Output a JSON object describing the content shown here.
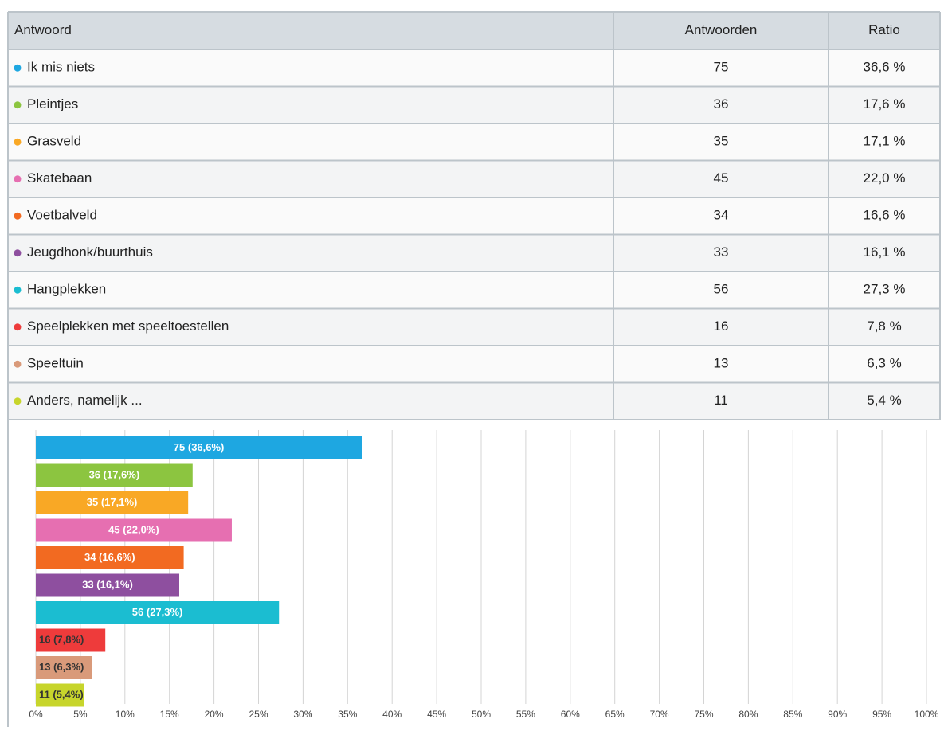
{
  "table": {
    "header": [
      "Antwoord",
      "Antwoorden",
      "Ratio"
    ],
    "rows": [
      [
        "Ik mis niets",
        75,
        "36,6 %"
      ],
      [
        "Pleintjes",
        36,
        "17,6 %"
      ],
      [
        "Grasveld",
        35,
        "17,1 %"
      ],
      [
        "Skatebaan",
        45,
        "22,0 %"
      ],
      [
        "Voetbalveld",
        34,
        "16,6 %"
      ],
      [
        "Jeugdhonk/buurthuis",
        33,
        "16,1 %"
      ],
      [
        "Hangplekken",
        56,
        "27,3 %"
      ],
      [
        "Speelplekken met speeltoestellen",
        16,
        "7,8 %"
      ],
      [
        "Speeltuin",
        13,
        "6,3 %"
      ],
      [
        "Anders, namelijk ...",
        11,
        "5,4 %"
      ]
    ]
  },
  "chart_data": {
    "type": "bar",
    "orientation": "horizontal",
    "values": [
      36.6,
      17.6,
      17.1,
      22.0,
      16.6,
      16.1,
      27.3,
      7.8,
      6.3,
      5.4
    ],
    "value_labels": [
      "75 (36,6%)",
      "36 (17,6%)",
      "35 (17,1%)",
      "45 (22,0%)",
      "34 (16,6%)",
      "33 (16,1%)",
      "56 (27,3%)",
      "16 (7,8%)",
      "13 (6,3%)",
      "11 (5,4%)"
    ],
    "colors": [
      "#1ea7e1",
      "#8cc540",
      "#f9a825",
      "#e66fb1",
      "#f26a21",
      "#8e4f9f",
      "#1bbdd1",
      "#ee3b3b",
      "#d99a7a",
      "#c7d52c"
    ],
    "xlim": [
      0,
      100
    ],
    "xticks": [
      {
        "value": 0,
        "label": "0%"
      },
      {
        "value": 5,
        "label": "5%"
      },
      {
        "value": 10,
        "label": "10%"
      },
      {
        "value": 15,
        "label": "15%"
      },
      {
        "value": 20,
        "label": "20%"
      },
      {
        "value": 25,
        "label": "25%"
      },
      {
        "value": 30,
        "label": "30%"
      },
      {
        "value": 35,
        "label": "35%"
      },
      {
        "value": 40,
        "label": "40%"
      },
      {
        "value": 45,
        "label": "45%"
      },
      {
        "value": 50,
        "label": "50%"
      },
      {
        "value": 55,
        "label": "55%"
      },
      {
        "value": 60,
        "label": "60%"
      },
      {
        "value": 65,
        "label": "65%"
      },
      {
        "value": 70,
        "label": "70%"
      },
      {
        "value": 75,
        "label": "75%"
      },
      {
        "value": 80,
        "label": "80%"
      },
      {
        "value": 85,
        "label": "85%"
      },
      {
        "value": 90,
        "label": "90%"
      },
      {
        "value": 95,
        "label": "95%"
      },
      {
        "value": 100,
        "label": "100%"
      }
    ],
    "grid": true
  }
}
